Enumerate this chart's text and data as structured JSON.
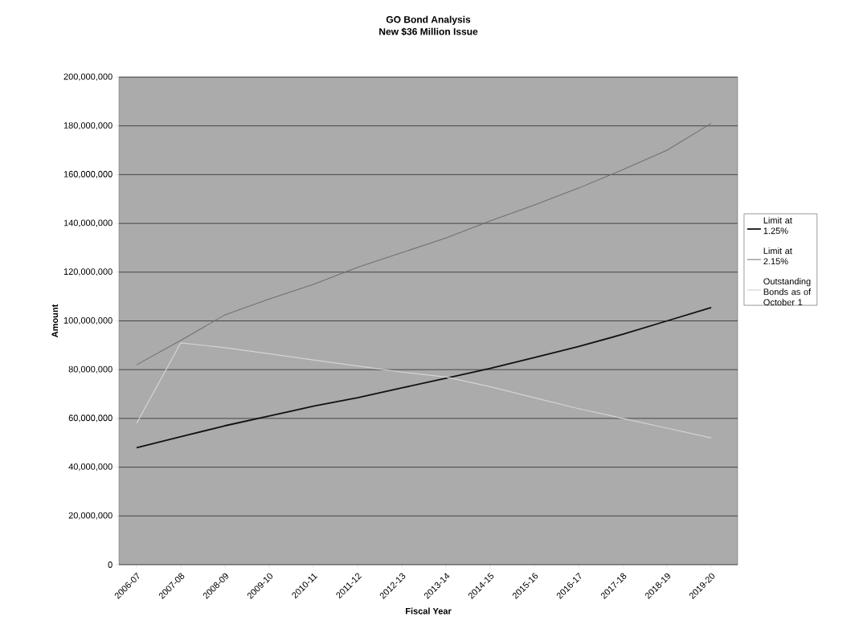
{
  "chart_data": {
    "type": "line",
    "title": "GO Bond Analysis",
    "subtitle": "New $36 Million Issue",
    "xlabel": "Fiscal Year",
    "ylabel": "Amount",
    "categories": [
      "2006-07",
      "2007-08",
      "2008-09",
      "2009-10",
      "2010-11",
      "2011-12",
      "2012-13",
      "2013-14",
      "2014-15",
      "2015-16",
      "2016-17",
      "2017-18",
      "2018-19",
      "2019-20"
    ],
    "series": [
      {
        "name": "Limit at 1.25%",
        "color": "#111111",
        "values": [
          48000000,
          52500000,
          57000000,
          61000000,
          65000000,
          68500000,
          72500000,
          76500000,
          80500000,
          85000000,
          89500000,
          94500000,
          100000000,
          105500000
        ]
      },
      {
        "name": "Limit at 2.15%",
        "color": "#707070",
        "values": [
          82000000,
          92000000,
          102500000,
          109000000,
          115000000,
          122000000,
          128000000,
          134000000,
          141000000,
          147500000,
          154500000,
          162000000,
          170000000,
          181000000
        ]
      },
      {
        "name": "Outstanding Bonds as of October 1",
        "color": "#d4d4d4",
        "values": [
          58000000,
          91000000,
          89000000,
          86500000,
          84000000,
          81500000,
          79000000,
          77000000,
          73000000,
          68500000,
          64000000,
          60000000,
          56000000,
          52000000
        ]
      }
    ],
    "ylim": [
      0,
      200000000
    ],
    "yticks": [
      {
        "value": 0,
        "label": "0"
      },
      {
        "value": 20000000,
        "label": "20,000,000"
      },
      {
        "value": 40000000,
        "label": "40,000,000"
      },
      {
        "value": 60000000,
        "label": "60,000,000"
      },
      {
        "value": 80000000,
        "label": "80,000,000"
      },
      {
        "value": 100000000,
        "label": "100,000,000"
      },
      {
        "value": 120000000,
        "label": "120,000,000"
      },
      {
        "value": 140000000,
        "label": "140,000,000"
      },
      {
        "value": 160000000,
        "label": "160,000,000"
      },
      {
        "value": 180000000,
        "label": "180,000,000"
      },
      {
        "value": 200000000,
        "label": "200,000,000"
      }
    ],
    "grid": "y",
    "legend": "right",
    "marker": "none",
    "line_style": "solid"
  }
}
